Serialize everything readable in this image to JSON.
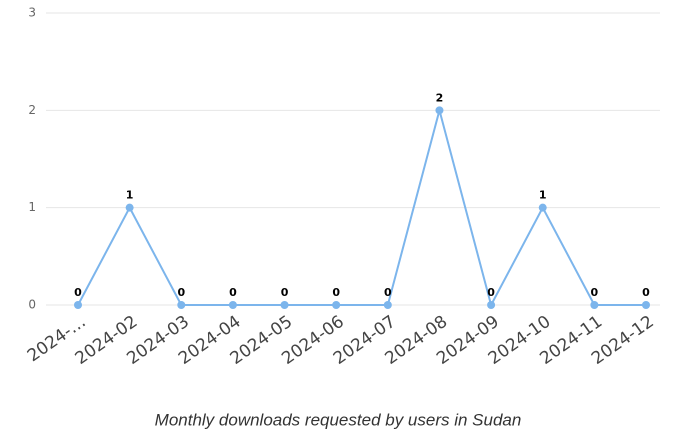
{
  "chart_data": {
    "type": "line",
    "title": "Monthly downloads requested by users in Sudan",
    "categories": [
      "2024-…",
      "2024-02",
      "2024-03",
      "2024-04",
      "2024-05",
      "2024-06",
      "2024-07",
      "2024-08",
      "2024-09",
      "2024-10",
      "2024-11",
      "2024-12"
    ],
    "series": [
      {
        "name": "Downloads",
        "color": "#7cb5ec",
        "values": [
          0,
          1,
          0,
          0,
          0,
          0,
          0,
          2,
          0,
          1,
          0,
          0
        ]
      }
    ],
    "ylim": [
      0,
      3
    ],
    "yticks": [
      0,
      1,
      2,
      3
    ],
    "grid": true
  }
}
